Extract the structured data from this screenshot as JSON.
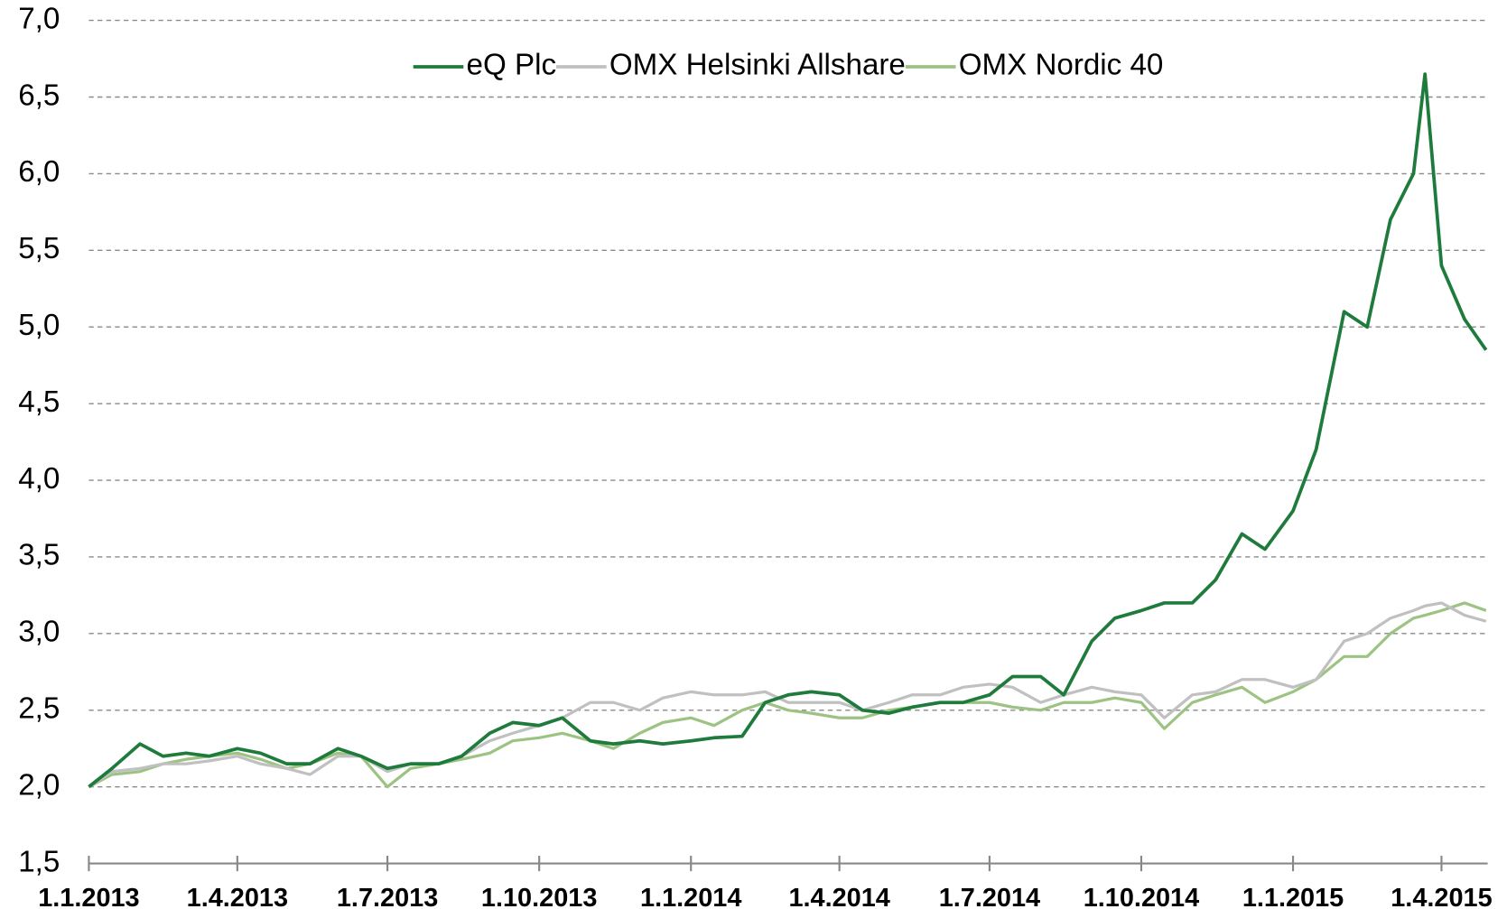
{
  "chart_data": {
    "type": "line",
    "x": [
      "2013-01-01",
      "2013-01-15",
      "2013-02-01",
      "2013-02-15",
      "2013-03-01",
      "2013-03-15",
      "2013-04-01",
      "2013-04-15",
      "2013-05-01",
      "2013-05-15",
      "2013-06-01",
      "2013-06-15",
      "2013-07-01",
      "2013-07-15",
      "2013-08-01",
      "2013-08-15",
      "2013-09-01",
      "2013-09-15",
      "2013-10-01",
      "2013-10-15",
      "2013-11-01",
      "2013-11-15",
      "2013-12-01",
      "2013-12-15",
      "2014-01-01",
      "2014-01-15",
      "2014-02-01",
      "2014-02-15",
      "2014-03-01",
      "2014-03-15",
      "2014-04-01",
      "2014-04-15",
      "2014-05-01",
      "2014-05-15",
      "2014-06-01",
      "2014-06-15",
      "2014-07-01",
      "2014-07-15",
      "2014-08-01",
      "2014-08-15",
      "2014-09-01",
      "2014-09-15",
      "2014-10-01",
      "2014-10-15",
      "2014-11-01",
      "2014-11-15",
      "2014-12-01",
      "2014-12-15",
      "2015-01-01",
      "2015-01-15",
      "2015-02-01",
      "2015-02-15",
      "2015-03-01",
      "2015-03-15",
      "2015-03-22",
      "2015-04-01",
      "2015-04-15",
      "2015-04-28"
    ],
    "series": [
      {
        "name": "eQ Plc",
        "color": "#1e7b3c",
        "values": [
          2.0,
          2.12,
          2.28,
          2.2,
          2.22,
          2.2,
          2.25,
          2.22,
          2.15,
          2.15,
          2.25,
          2.2,
          2.12,
          2.15,
          2.15,
          2.2,
          2.35,
          2.42,
          2.4,
          2.45,
          2.3,
          2.28,
          2.3,
          2.28,
          2.3,
          2.32,
          2.33,
          2.55,
          2.6,
          2.62,
          2.6,
          2.5,
          2.48,
          2.52,
          2.55,
          2.55,
          2.6,
          2.72,
          2.72,
          2.6,
          2.95,
          3.1,
          3.15,
          3.2,
          3.2,
          3.35,
          3.65,
          3.55,
          3.8,
          4.2,
          5.1,
          5.0,
          5.7,
          6.0,
          6.65,
          5.4,
          5.05,
          4.85
        ]
      },
      {
        "name": "OMX Helsinki Allshare",
        "color": "#c0c0c0",
        "values": [
          2.0,
          2.1,
          2.12,
          2.15,
          2.15,
          2.17,
          2.2,
          2.15,
          2.12,
          2.08,
          2.2,
          2.2,
          2.1,
          2.15,
          2.15,
          2.2,
          2.3,
          2.35,
          2.4,
          2.45,
          2.55,
          2.55,
          2.5,
          2.58,
          2.62,
          2.6,
          2.6,
          2.62,
          2.55,
          2.55,
          2.55,
          2.5,
          2.55,
          2.6,
          2.6,
          2.65,
          2.67,
          2.65,
          2.55,
          2.6,
          2.65,
          2.62,
          2.6,
          2.45,
          2.6,
          2.62,
          2.7,
          2.7,
          2.65,
          2.7,
          2.95,
          3.0,
          3.1,
          3.15,
          3.18,
          3.2,
          3.12,
          3.08
        ]
      },
      {
        "name": "OMX Nordic 40",
        "color": "#9dc383",
        "values": [
          2.0,
          2.08,
          2.1,
          2.15,
          2.18,
          2.2,
          2.22,
          2.18,
          2.12,
          2.15,
          2.22,
          2.2,
          2.0,
          2.12,
          2.15,
          2.18,
          2.22,
          2.3,
          2.32,
          2.35,
          2.3,
          2.25,
          2.35,
          2.42,
          2.45,
          2.4,
          2.5,
          2.55,
          2.5,
          2.48,
          2.45,
          2.45,
          2.5,
          2.52,
          2.55,
          2.55,
          2.55,
          2.52,
          2.5,
          2.55,
          2.55,
          2.58,
          2.55,
          2.38,
          2.55,
          2.6,
          2.65,
          2.55,
          2.62,
          2.7,
          2.85,
          2.85,
          3.0,
          3.1,
          3.12,
          3.15,
          3.2,
          3.15
        ]
      }
    ],
    "xlim": [
      "2013-01-01",
      "2015-04-29"
    ],
    "xticks": [
      {
        "value": "2013-01-01",
        "label": "1.1.2013"
      },
      {
        "value": "2013-04-01",
        "label": "1.4.2013"
      },
      {
        "value": "2013-07-01",
        "label": "1.7.2013"
      },
      {
        "value": "2013-10-01",
        "label": "1.10.2013"
      },
      {
        "value": "2014-01-01",
        "label": "1.1.2014"
      },
      {
        "value": "2014-04-01",
        "label": "1.4.2014"
      },
      {
        "value": "2014-07-01",
        "label": "1.7.2014"
      },
      {
        "value": "2014-10-01",
        "label": "1.10.2014"
      },
      {
        "value": "2015-01-01",
        "label": "1.1.2015"
      },
      {
        "value": "2015-04-01",
        "label": "1.4.2015"
      }
    ],
    "ylim": [
      1.5,
      7.0
    ],
    "yticks": [
      {
        "value": 1.5,
        "label": "1,5"
      },
      {
        "value": 2.0,
        "label": "2,0"
      },
      {
        "value": 2.5,
        "label": "2,5"
      },
      {
        "value": 3.0,
        "label": "3,0"
      },
      {
        "value": 3.5,
        "label": "3,5"
      },
      {
        "value": 4.0,
        "label": "4,0"
      },
      {
        "value": 4.5,
        "label": "4,5"
      },
      {
        "value": 5.0,
        "label": "5,0"
      },
      {
        "value": 5.5,
        "label": "5,5"
      },
      {
        "value": 6.0,
        "label": "6,0"
      },
      {
        "value": 6.5,
        "label": "6,5"
      },
      {
        "value": 7.0,
        "label": "7,0"
      }
    ],
    "grid": true,
    "legend": "top"
  }
}
